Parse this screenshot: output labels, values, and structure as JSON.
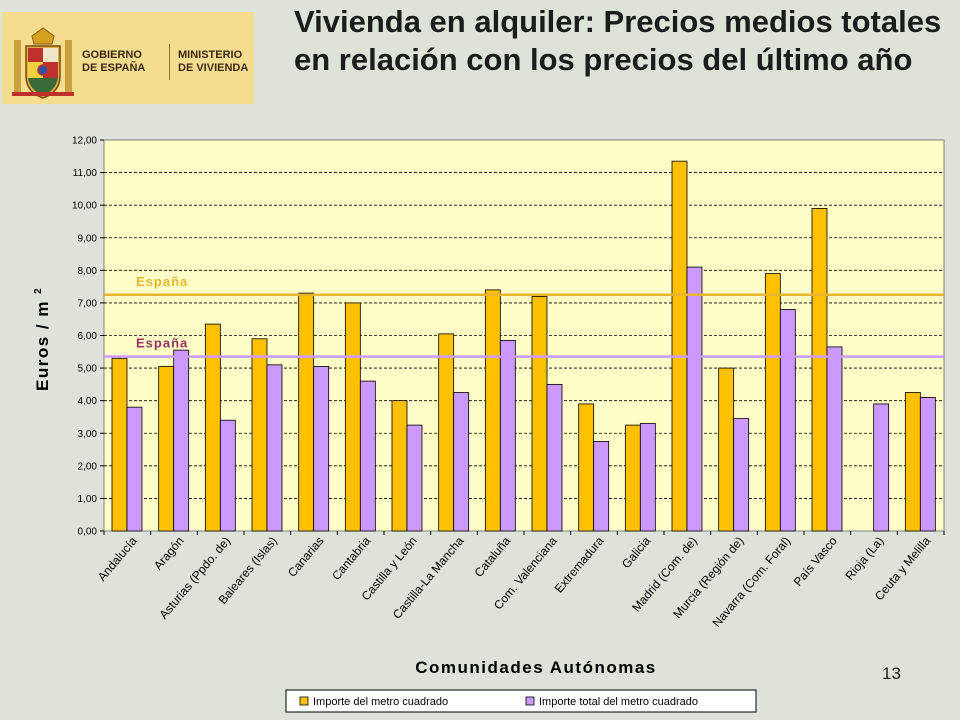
{
  "header": {
    "title": "Vivienda en alquiler: Precios medios totales en relación con los precios del último año",
    "logo": {
      "line1": "GOBIERNO",
      "line2": "DE ESPAÑA",
      "line3": "MINISTERIO",
      "line4": "DE VIVIENDA"
    }
  },
  "page_number": "13",
  "colors": {
    "background": "#dde3d8",
    "plot_area": "#ffffc8",
    "series1": "#ffc000",
    "series2": "#cc99ff",
    "ref1": "#e8b530",
    "ref2": "#cc99ff",
    "ref2_label": "#993366"
  },
  "chart_data": {
    "type": "bar",
    "categories": [
      "Andalucía",
      "Aragón",
      "Asturias (Ppdo. de)",
      "Baleares (Islas)",
      "Canarias",
      "Cantabria",
      "Castilla y León",
      "Castilla-La Mancha",
      "Cataluña",
      "Com. Valenciana",
      "Extremadura",
      "Galicia",
      "Madrid (Com. de)",
      "Murcia (Región de)",
      "Navarra (Com. Foral)",
      "País Vasco",
      "Rioja (La)",
      "Ceuta y Melilla"
    ],
    "series": [
      {
        "name": "Importe del metro cuadrado",
        "values": [
          5.3,
          5.05,
          6.35,
          5.9,
          7.3,
          7.0,
          4.0,
          6.05,
          7.4,
          7.2,
          3.9,
          3.25,
          11.35,
          5.0,
          7.9,
          9.9,
          null,
          4.25
        ]
      },
      {
        "name": "Importe total del metro cuadrado",
        "values": [
          3.8,
          5.55,
          3.4,
          5.1,
          5.05,
          4.6,
          3.25,
          4.25,
          5.85,
          4.5,
          2.75,
          3.3,
          8.1,
          3.45,
          6.8,
          5.65,
          3.9,
          4.1
        ]
      }
    ],
    "reference_lines": [
      {
        "label": "España",
        "value": 7.25,
        "color": "#e8b530",
        "label_color": "#e8b530"
      },
      {
        "label": "España",
        "value": 5.35,
        "color": "#cc99ff",
        "label_color": "#993366"
      }
    ],
    "y_ticks": [
      "0,00",
      "1,00",
      "2,00",
      "3,00",
      "4,00",
      "5,00",
      "6,00",
      "7,00",
      "8,00",
      "9,00",
      "10,00",
      "11,00",
      "12,00"
    ],
    "ylim": [
      0,
      12
    ],
    "xlabel": "Comunidades Autónomas",
    "ylabel": "Euros / m",
    "ylabel_sup": "2",
    "grid": true,
    "legend_position": "bottom"
  }
}
